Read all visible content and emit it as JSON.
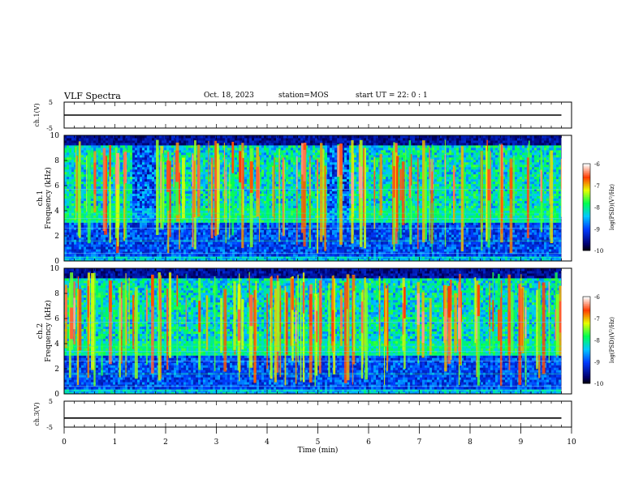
{
  "header": {
    "title": "VLF Spectra",
    "date": "Oct. 18, 2023",
    "station": "station=MOS",
    "start": "start UT =  22: 0  : 1"
  },
  "chart_data": [
    {
      "type": "line",
      "name": "ch1-voltage",
      "ylabel": "ch.1(V)",
      "ylim": [
        -5,
        5
      ],
      "yticks": [
        "5",
        "-5"
      ],
      "xlim": [
        0,
        10
      ],
      "trace_level": 0,
      "trace_end": 9.8
    },
    {
      "type": "heatmap",
      "name": "ch1-spectrogram",
      "ylabel": "ch.1\nFrequency (kHz)",
      "xlim": [
        0,
        10
      ],
      "ylim": [
        0,
        10
      ],
      "yticks": [
        "0",
        "2",
        "4",
        "6",
        "8",
        "10"
      ],
      "data_end": 9.8,
      "quiet_intervals_min": [
        [
          1.3,
          1.8
        ],
        [
          5.15,
          5.6
        ]
      ],
      "colorbar": {
        "label": "log(PSD)(V²/Hz)",
        "range": [
          -10,
          -6
        ],
        "ticks": [
          "-6",
          "-7",
          "-8",
          "-9",
          "-10"
        ]
      }
    },
    {
      "type": "heatmap",
      "name": "ch2-spectrogram",
      "ylabel": "ch.2\nFrequency (kHz)",
      "xlim": [
        0,
        10
      ],
      "ylim": [
        0,
        10
      ],
      "yticks": [
        "0",
        "2",
        "4",
        "6",
        "8",
        "10"
      ],
      "data_end": 9.8,
      "colorbar": {
        "label": "log(PSD)(V²/Hz)",
        "range": [
          -10,
          -6
        ],
        "ticks": [
          "-6",
          "-7",
          "-8",
          "-9",
          "-10"
        ]
      }
    },
    {
      "type": "line",
      "name": "ch3-voltage",
      "ylabel": "ch.3(V)",
      "ylim": [
        -5,
        5
      ],
      "yticks": [
        "5",
        "-5"
      ],
      "xlim": [
        0,
        10
      ],
      "xlabel": "Time (min)",
      "xticks": [
        "0",
        "1",
        "2",
        "3",
        "4",
        "5",
        "6",
        "7",
        "8",
        "9",
        "10"
      ],
      "trace_level": -1.5,
      "trace_end": 9.8
    }
  ]
}
